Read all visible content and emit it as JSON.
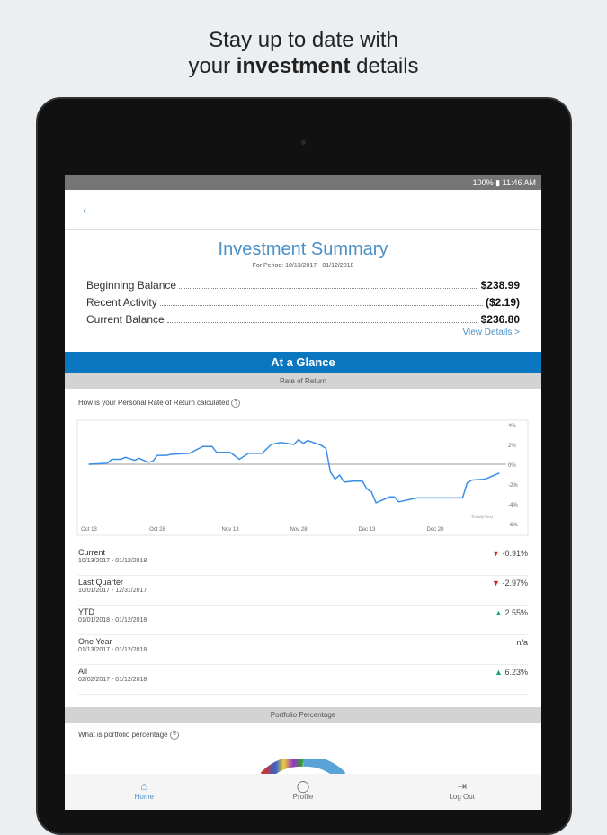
{
  "promo": {
    "line1": "Stay up to date with",
    "line2_prefix": "your ",
    "line2_bold": "investment",
    "line2_suffix": " details"
  },
  "status_bar": {
    "text": "100% ▮ 11:46 AM"
  },
  "summary": {
    "title": "Investment Summary",
    "period": "For Period: 10/13/2017 - 01/12/2018",
    "rows": [
      {
        "label": "Beginning Balance",
        "value": "$238.99"
      },
      {
        "label": "Recent Activity",
        "value": "($2.19)"
      },
      {
        "label": "Current Balance",
        "value": "$236.80"
      }
    ],
    "view_details": "View Details >"
  },
  "glance": {
    "title": "At a Glance",
    "rate_header": "Rate of Return",
    "rate_question": "How is your Personal Rate of Return calculated",
    "portfolio_header": "Portfolio Percentage",
    "portfolio_question": "What is portfolio percentage"
  },
  "chart_data": {
    "type": "line",
    "watermark": "©dailyVest",
    "x_ticks": [
      "Oct 13",
      "Oct 28",
      "Nov 13",
      "Nov 28",
      "Dec 13",
      "Dec 28"
    ],
    "x_tick_dates": [
      "2017-10-13",
      "2017-10-28",
      "2017-11-13",
      "2017-11-28",
      "2017-12-13",
      "2017-12-28"
    ],
    "y_ticks": [
      "4%",
      "2%",
      "0%",
      "-2%",
      "-4%",
      "-6%"
    ],
    "ylim": [
      -6,
      4
    ],
    "xlim": [
      "2017-10-13",
      "2018-01-12"
    ],
    "zero_line": true,
    "color": "#3a8ee6",
    "points": [
      [
        "2017-10-13",
        0
      ],
      [
        "2017-10-17",
        0.1
      ],
      [
        "2017-10-18",
        0.5
      ],
      [
        "2017-10-20",
        0.5
      ],
      [
        "2017-10-21",
        0.7
      ],
      [
        "2017-10-23",
        0.4
      ],
      [
        "2017-10-24",
        0.6
      ],
      [
        "2017-10-26",
        0.2
      ],
      [
        "2017-10-27",
        0.3
      ],
      [
        "2017-10-28",
        0.9
      ],
      [
        "2017-10-30",
        0.9
      ],
      [
        "2017-10-31",
        1.0
      ],
      [
        "2017-11-04",
        1.1
      ],
      [
        "2017-11-07",
        1.8
      ],
      [
        "2017-11-09",
        1.8
      ],
      [
        "2017-11-10",
        1.2
      ],
      [
        "2017-11-13",
        1.2
      ],
      [
        "2017-11-15",
        0.5
      ],
      [
        "2017-11-17",
        1.1
      ],
      [
        "2017-11-20",
        1.1
      ],
      [
        "2017-11-22",
        2.0
      ],
      [
        "2017-11-24",
        2.2
      ],
      [
        "2017-11-27",
        2.0
      ],
      [
        "2017-11-28",
        2.5
      ],
      [
        "2017-11-29",
        2.1
      ],
      [
        "2017-11-30",
        2.4
      ],
      [
        "2017-12-03",
        1.9
      ],
      [
        "2017-12-04",
        1.6
      ],
      [
        "2017-12-05",
        -0.8
      ],
      [
        "2017-12-06",
        -1.5
      ],
      [
        "2017-12-07",
        -1.1
      ],
      [
        "2017-12-08",
        -1.8
      ],
      [
        "2017-12-10",
        -1.7
      ],
      [
        "2017-12-12",
        -1.7
      ],
      [
        "2017-12-13",
        -2.5
      ],
      [
        "2017-12-14",
        -2.8
      ],
      [
        "2017-12-15",
        -3.9
      ],
      [
        "2017-12-18",
        -3.3
      ],
      [
        "2017-12-19",
        -3.3
      ],
      [
        "2017-12-20",
        -3.8
      ],
      [
        "2017-12-24",
        -3.4
      ],
      [
        "2018-01-03",
        -3.4
      ],
      [
        "2018-01-04",
        -1.9
      ],
      [
        "2018-01-05",
        -1.6
      ],
      [
        "2018-01-08",
        -1.5
      ],
      [
        "2018-01-10",
        -1.1
      ],
      [
        "2018-01-11",
        -0.9
      ]
    ]
  },
  "returns": [
    {
      "label": "Current",
      "dates": "10/13/2017 - 01/12/2018",
      "value": "-0.91%",
      "trend": "down"
    },
    {
      "label": "Last Quarter",
      "dates": "10/01/2017 - 12/31/2017",
      "value": "-2.97%",
      "trend": "down"
    },
    {
      "label": "YTD",
      "dates": "01/01/2018 - 01/12/2018",
      "value": "2.55%",
      "trend": "up"
    },
    {
      "label": "One Year",
      "dates": "01/13/2017 - 01/12/2018",
      "value": "n/a",
      "trend": "none"
    },
    {
      "label": "All",
      "dates": "02/02/2017 - 01/12/2018",
      "value": "6.23%",
      "trend": "up"
    }
  ],
  "nav": [
    {
      "label": "Home",
      "icon": "home-icon",
      "active": true
    },
    {
      "label": "Profile",
      "icon": "profile-icon"
    },
    {
      "label": "Log Out",
      "icon": "logout-icon"
    }
  ]
}
